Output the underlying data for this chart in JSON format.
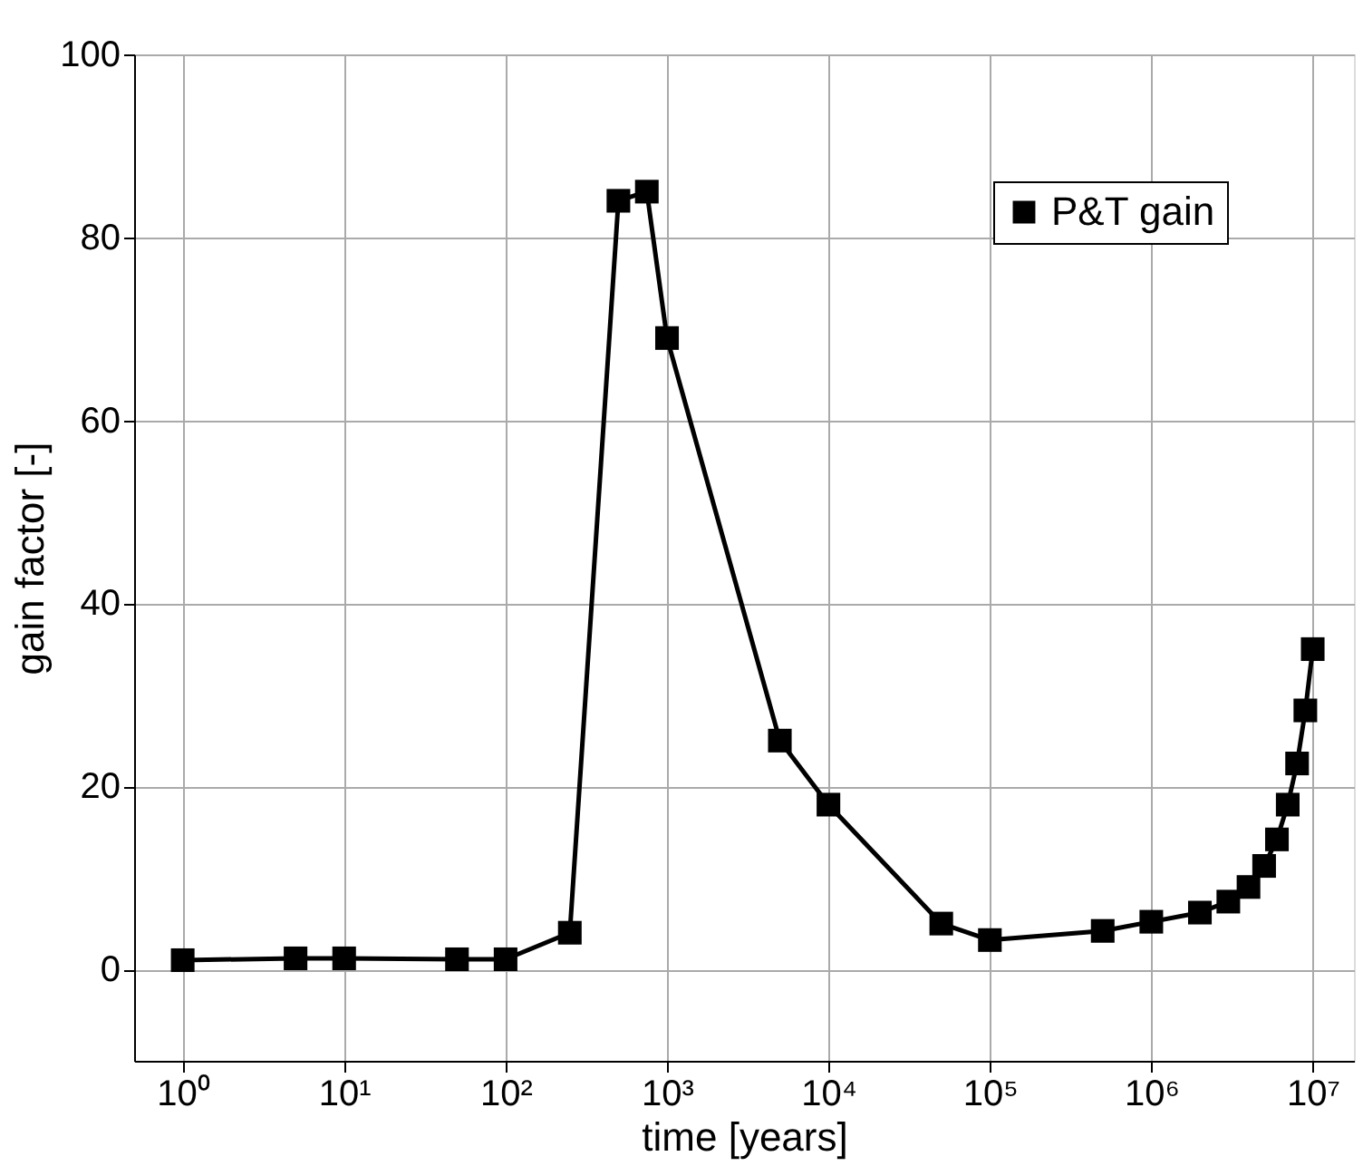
{
  "chart_data": {
    "type": "line",
    "xlabel": "time [years]",
    "ylabel": "gain factor [-]",
    "x": [
      1,
      5,
      10,
      50,
      100,
      250,
      500,
      750,
      1000,
      5000,
      10000,
      50000,
      100000,
      500000,
      1000000,
      2000000,
      3000000,
      4000000,
      5000000,
      6000000,
      7000000,
      8000000,
      9000000,
      10000000
    ],
    "series": [
      {
        "name": "P&T gain",
        "color": "#000000",
        "values": [
          1,
          1.2,
          1.2,
          1.1,
          1.1,
          4,
          84,
          85,
          69,
          25,
          18,
          5,
          3.2,
          4.2,
          5.2,
          6.2,
          7.4,
          9,
          11.3,
          14.2,
          18,
          22.5,
          28.3,
          35
        ]
      }
    ],
    "log": "x",
    "xlim": [
      0.5,
      18000000
    ],
    "xticks": [
      {
        "value": 1,
        "label": "10⁰"
      },
      {
        "value": 10,
        "label": "10¹"
      },
      {
        "value": 100,
        "label": "10²"
      },
      {
        "value": 1000,
        "label": "10³"
      },
      {
        "value": 10000,
        "label": "10⁴"
      },
      {
        "value": 100000,
        "label": "10⁵"
      },
      {
        "value": 1000000,
        "label": "10⁶"
      },
      {
        "value": 10000000,
        "label": "10⁷"
      }
    ],
    "ylim": [
      -10,
      100
    ],
    "yticks": [
      0,
      20,
      40,
      60,
      80,
      100
    ],
    "grid": true,
    "legend": "top right",
    "marker": "square",
    "line_style": "solid"
  }
}
